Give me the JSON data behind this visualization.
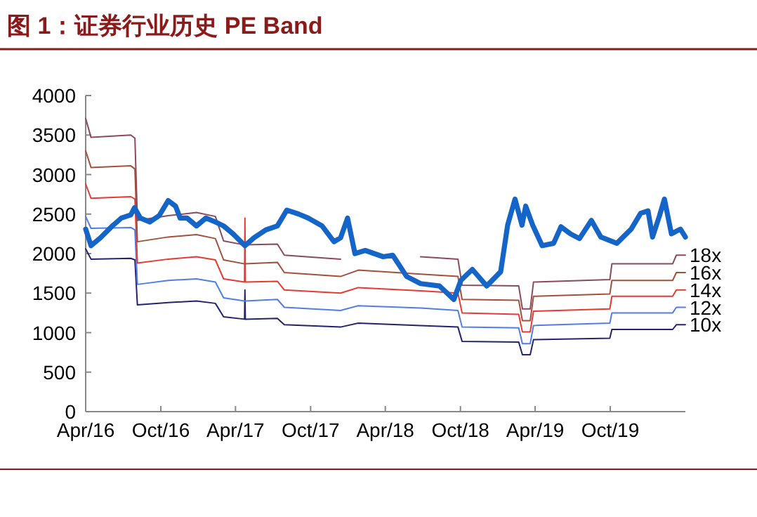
{
  "chart_data": {
    "type": "line",
    "title": "图 1：证券行业历史 PE Band",
    "x": [
      "2016-04-01",
      "2016-04-14",
      "2016-07-20",
      "2016-07-30",
      "2016-08-05",
      "2016-10-19",
      "2016-12-27",
      "2017-02-11",
      "2017-03-03",
      "2017-04-23",
      "2017-04-24",
      "2017-04-25",
      "2017-07-12",
      "2017-07-29",
      "2017-12-13",
      "2018-01-25",
      "2018-06-26",
      "2018-09-25",
      "2018-10-05",
      "2019-02-20",
      "2019-03-01",
      "2019-03-20",
      "2019-03-28",
      "2019-09-30",
      "2019-10-05",
      "2020-03-01",
      "2020-03-10",
      "2020-04-01"
    ],
    "series": [
      {
        "color": "#1565c8",
        "x": [
          "2016-04-01",
          "2016-04-14",
          "2016-05-07",
          "2016-06-05",
          "2016-06-27",
          "2016-07-20",
          "2016-07-29",
          "2016-08-12",
          "2016-09-04",
          "2016-09-27",
          "2016-10-19",
          "2016-11-06",
          "2016-11-17",
          "2016-12-04",
          "2016-12-27",
          "2017-01-19",
          "2017-02-11",
          "2017-03-03",
          "2017-03-26",
          "2017-04-24",
          "2017-05-16",
          "2017-06-14",
          "2017-07-12",
          "2017-08-04",
          "2017-09-02",
          "2017-09-25",
          "2017-10-29",
          "2017-11-27",
          "2017-12-13",
          "2017-12-30",
          "2018-01-17",
          "2018-02-11",
          "2018-03-27",
          "2018-04-19",
          "2018-05-23",
          "2018-06-26",
          "2018-08-11",
          "2018-09-15",
          "2018-10-02",
          "2018-10-30",
          "2018-12-04",
          "2019-01-07",
          "2019-01-24",
          "2019-02-11",
          "2019-02-28",
          "2019-03-09",
          "2019-03-26",
          "2019-04-18",
          "2019-05-16",
          "2019-06-03",
          "2019-06-26",
          "2019-07-18",
          "2019-08-16",
          "2019-09-08",
          "2019-10-17",
          "2019-11-21",
          "2019-12-14",
          "2020-01-01",
          "2020-01-12",
          "2020-01-29",
          "2020-02-10",
          "2020-02-27",
          "2020-03-20",
          "2020-04-01"
        ],
        "values": [
          2310,
          2100,
          2200,
          2350,
          2450,
          2490,
          2580,
          2450,
          2400,
          2480,
          2670,
          2600,
          2450,
          2450,
          2350,
          2450,
          2400,
          2350,
          2250,
          2100,
          2200,
          2300,
          2350,
          2550,
          2500,
          2450,
          2350,
          2150,
          2200,
          2450,
          2000,
          2040,
          1960,
          1980,
          1710,
          1620,
          1590,
          1420,
          1660,
          1800,
          1590,
          1770,
          2360,
          2690,
          2360,
          2600,
          2360,
          2100,
          2130,
          2340,
          2250,
          2190,
          2420,
          2210,
          2130,
          2310,
          2510,
          2540,
          2210,
          2480,
          2690,
          2250,
          2310,
          2210
        ]
      },
      {
        "name": "18x",
        "color": "#8c4a5c",
        "values": [
          3710,
          3470,
          3500,
          3460,
          2420,
          2480,
          2520,
          2470,
          2160,
          2110,
          2110,
          2110,
          2120,
          1980,
          1930,
          null,
          1960,
          1930,
          1600,
          1590,
          1300,
          1300,
          1640,
          1670,
          1870,
          1870,
          1980,
          1980
        ]
      },
      {
        "name": "16x",
        "color": "#a5503a",
        "values": [
          3300,
          3090,
          3110,
          3070,
          2150,
          2210,
          2240,
          2190,
          1920,
          1870,
          1870,
          1870,
          1890,
          1760,
          1710,
          1790,
          1740,
          1710,
          1420,
          1410,
          1150,
          1150,
          1460,
          1490,
          1660,
          1660,
          1760,
          1760
        ]
      },
      {
        "name": "14x",
        "color": "#e83a32",
        "values": [
          2880,
          2700,
          2720,
          2690,
          1880,
          1930,
          1960,
          1920,
          1680,
          1640,
          2450,
          1640,
          1650,
          1540,
          1500,
          1570,
          1530,
          1500,
          1250,
          1230,
          1010,
          1010,
          1270,
          1300,
          1460,
          1460,
          1540,
          1540
        ]
      },
      {
        "name": "12x",
        "color": "#4f7fe6",
        "values": [
          2470,
          2320,
          2330,
          2300,
          1610,
          1660,
          1680,
          1640,
          1440,
          1400,
          1400,
          1400,
          1420,
          1320,
          1280,
          1340,
          1310,
          1280,
          1070,
          1060,
          860,
          860,
          1090,
          1120,
          1250,
          1250,
          1320,
          1320
        ]
      },
      {
        "name": "10x",
        "color": "#24246e",
        "values": [
          2060,
          1930,
          1940,
          1920,
          1350,
          1380,
          1400,
          1370,
          1200,
          1170,
          1540,
          1170,
          1180,
          1100,
          1070,
          1120,
          1090,
          1070,
          890,
          880,
          720,
          720,
          910,
          930,
          1040,
          1040,
          1100,
          1100
        ]
      }
    ],
    "xlim": [
      "2016-04-01",
      "2020-04-01"
    ],
    "xticks": [
      {
        "value": "2016-04-01",
        "label": "Apr/16"
      },
      {
        "value": "2016-10-01",
        "label": "Oct/16"
      },
      {
        "value": "2017-04-01",
        "label": "Apr/17"
      },
      {
        "value": "2017-10-01",
        "label": "Oct/17"
      },
      {
        "value": "2018-04-01",
        "label": "Apr/18"
      },
      {
        "value": "2018-10-01",
        "label": "Oct/18"
      },
      {
        "value": "2019-04-01",
        "label": "Apr/19"
      },
      {
        "value": "2019-10-01",
        "label": "Oct/19"
      }
    ],
    "ylim": [
      0,
      4000
    ],
    "yticks": [
      0,
      500,
      1000,
      1500,
      2000,
      2500,
      3000,
      3500,
      4000
    ]
  }
}
